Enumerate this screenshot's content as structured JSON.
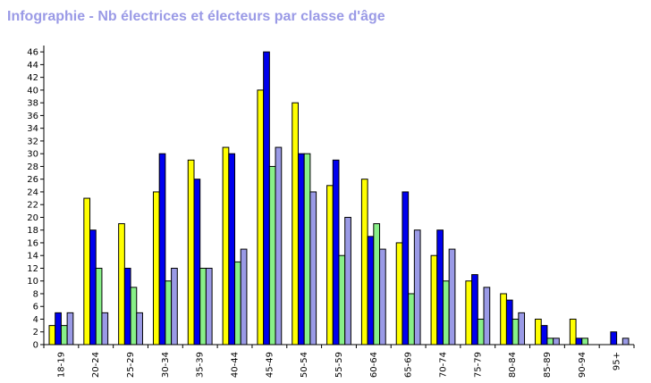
{
  "chart_data": {
    "type": "bar",
    "title": "Infographie - Nb électrices et électeurs par classe d'âge",
    "xlabel": "",
    "ylabel": "",
    "ylim": [
      0,
      47
    ],
    "yticks": [
      0,
      2,
      4,
      6,
      8,
      10,
      12,
      14,
      16,
      18,
      20,
      22,
      24,
      26,
      28,
      30,
      32,
      34,
      36,
      38,
      40,
      42,
      44,
      46
    ],
    "grid": false,
    "legend": "none",
    "categories": [
      "18-19",
      "20-24",
      "25-29",
      "30-34",
      "35-39",
      "40-44",
      "45-49",
      "50-54",
      "55-59",
      "60-64",
      "65-69",
      "70-74",
      "75-79",
      "80-84",
      "85-89",
      "90-94",
      "95+"
    ],
    "series": [
      {
        "color": "#ffff00",
        "values": [
          3,
          23,
          19,
          24,
          29,
          31,
          40,
          38,
          25,
          26,
          16,
          14,
          10,
          8,
          4,
          4,
          0
        ]
      },
      {
        "color": "#0000ee",
        "values": [
          5,
          18,
          12,
          30,
          26,
          30,
          46,
          30,
          29,
          17,
          24,
          18,
          11,
          7,
          3,
          1,
          2
        ]
      },
      {
        "color": "#88f088",
        "values": [
          3,
          12,
          9,
          10,
          12,
          13,
          28,
          30,
          14,
          19,
          8,
          10,
          4,
          4,
          1,
          1,
          0
        ]
      },
      {
        "color": "#9a9ae6",
        "values": [
          5,
          5,
          5,
          12,
          12,
          15,
          31,
          24,
          20,
          15,
          18,
          15,
          9,
          5,
          1,
          0,
          1
        ]
      }
    ]
  }
}
